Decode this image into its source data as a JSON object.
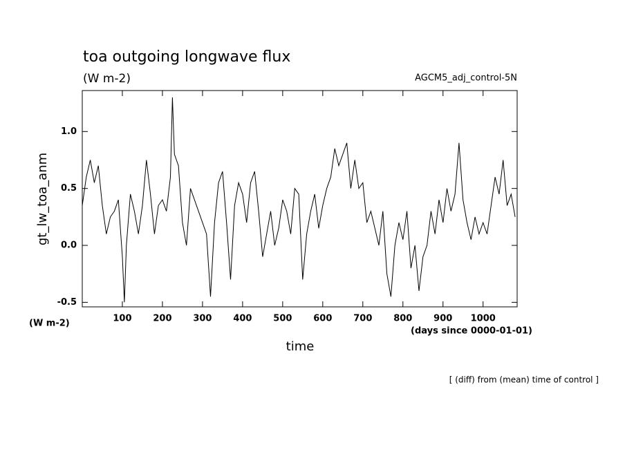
{
  "chart_data": {
    "type": "line",
    "title": "toa outgoing longwave flux",
    "subtitle": "(W m-2)",
    "annotation": "AGCM5_adj_control-5N",
    "y_label": "gt_lw_toa_anm",
    "y_unit": "(W m-2)",
    "x_label": "time",
    "x_unit": "(days since 0000-01-01)",
    "footnote": "[ (diff) from (mean) time of control ]",
    "color": "#000000",
    "xlim": [
      0,
      1085
    ],
    "ylim": [
      -0.54,
      1.36
    ],
    "xticks": [
      100,
      200,
      300,
      400,
      500,
      600,
      700,
      800,
      900,
      1000
    ],
    "yticks": [
      {
        "value": -0.5,
        "label": "-0.5"
      },
      {
        "value": 0,
        "label": "0.0"
      },
      {
        "value": 0.5,
        "label": "0.5"
      },
      {
        "value": 1,
        "label": "1.0"
      }
    ],
    "x": [
      0,
      10,
      20,
      30,
      40,
      50,
      60,
      70,
      80,
      90,
      100,
      105,
      110,
      120,
      130,
      140,
      150,
      160,
      170,
      180,
      190,
      200,
      210,
      220,
      225,
      230,
      240,
      250,
      260,
      270,
      280,
      290,
      300,
      310,
      320,
      330,
      340,
      350,
      360,
      370,
      380,
      390,
      400,
      410,
      420,
      430,
      440,
      450,
      460,
      470,
      480,
      490,
      500,
      510,
      520,
      530,
      540,
      550,
      560,
      570,
      580,
      590,
      600,
      610,
      620,
      630,
      640,
      650,
      660,
      670,
      680,
      690,
      700,
      710,
      720,
      730,
      740,
      750,
      760,
      770,
      780,
      790,
      800,
      810,
      820,
      830,
      840,
      850,
      860,
      870,
      880,
      890,
      900,
      910,
      920,
      930,
      940,
      950,
      960,
      970,
      980,
      990,
      1000,
      1010,
      1020,
      1030,
      1040,
      1050,
      1060,
      1070,
      1080
    ],
    "values": [
      0.35,
      0.6,
      0.75,
      0.55,
      0.7,
      0.35,
      0.1,
      0.25,
      0.3,
      0.4,
      -0.1,
      -0.5,
      0.0,
      0.45,
      0.3,
      0.1,
      0.35,
      0.75,
      0.45,
      0.1,
      0.35,
      0.4,
      0.3,
      0.6,
      1.3,
      0.8,
      0.7,
      0.2,
      0.0,
      0.5,
      0.4,
      0.3,
      0.2,
      0.1,
      -0.45,
      0.2,
      0.55,
      0.65,
      0.2,
      -0.3,
      0.35,
      0.55,
      0.45,
      0.2,
      0.55,
      0.65,
      0.3,
      -0.1,
      0.1,
      0.3,
      0.0,
      0.15,
      0.4,
      0.3,
      0.1,
      0.5,
      0.45,
      -0.3,
      0.1,
      0.3,
      0.45,
      0.15,
      0.35,
      0.5,
      0.6,
      0.85,
      0.7,
      0.8,
      0.9,
      0.5,
      0.75,
      0.5,
      0.55,
      0.2,
      0.3,
      0.15,
      0.0,
      0.3,
      -0.25,
      -0.45,
      0.0,
      0.2,
      0.05,
      0.3,
      -0.2,
      0.0,
      -0.4,
      -0.1,
      0.0,
      0.3,
      0.1,
      0.4,
      0.2,
      0.5,
      0.3,
      0.45,
      0.9,
      0.4,
      0.2,
      0.05,
      0.25,
      0.1,
      0.2,
      0.1,
      0.35,
      0.6,
      0.45,
      0.75,
      0.35,
      0.45,
      0.25
    ]
  }
}
